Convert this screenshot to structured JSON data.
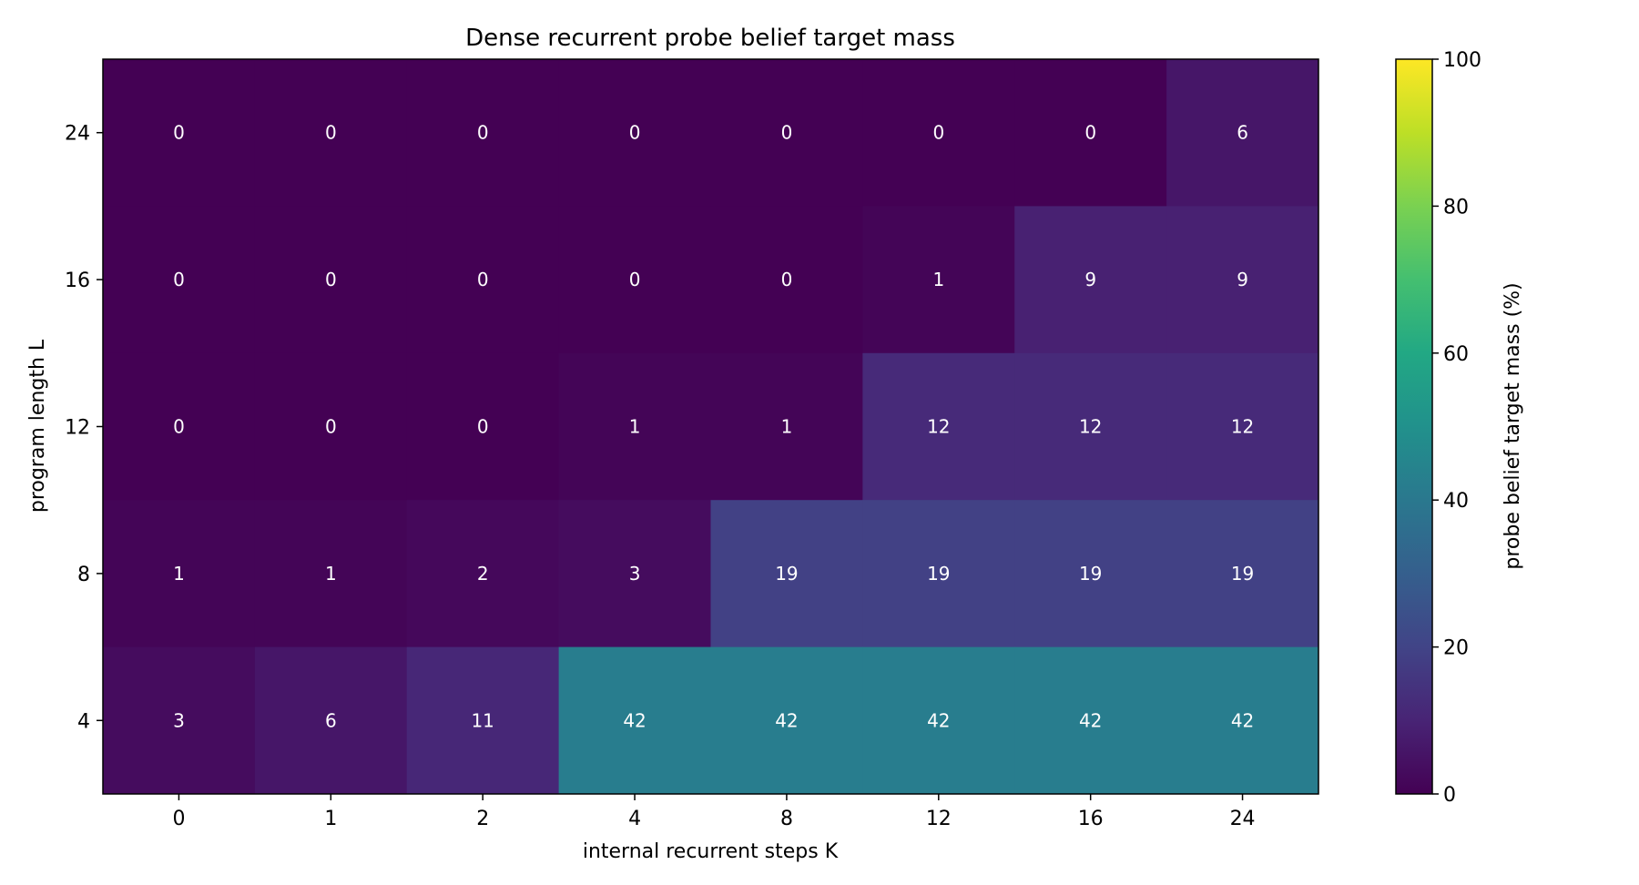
{
  "chart_data": {
    "type": "heatmap",
    "title": "Dense recurrent probe belief target mass",
    "xlabel": "internal recurrent steps K",
    "ylabel": "program length L",
    "x_categories": [
      "0",
      "1",
      "2",
      "4",
      "8",
      "12",
      "16",
      "24"
    ],
    "y_categories": [
      "24",
      "16",
      "12",
      "8",
      "4"
    ],
    "values": [
      [
        0,
        0,
        0,
        0,
        0,
        0,
        0,
        6
      ],
      [
        0,
        0,
        0,
        0,
        0,
        1,
        9,
        9
      ],
      [
        0,
        0,
        0,
        1,
        1,
        12,
        12,
        12
      ],
      [
        1,
        1,
        2,
        3,
        19,
        19,
        19,
        19
      ],
      [
        3,
        6,
        11,
        42,
        42,
        42,
        42,
        42
      ]
    ],
    "colormap": "viridis",
    "colorbar": {
      "label": "probe belief target mass (%)",
      "range": [
        0,
        100
      ],
      "ticks": [
        "0",
        "20",
        "40",
        "60",
        "80",
        "100"
      ]
    },
    "cell_label_color": "#ffffff"
  }
}
